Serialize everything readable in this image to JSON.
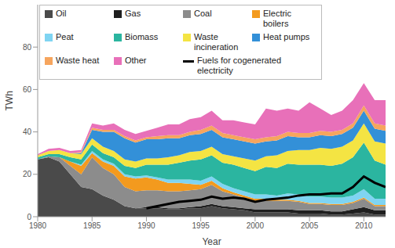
{
  "chart_data": {
    "type": "area",
    "stacked": true,
    "grid": false,
    "legend": "upper left",
    "x_label": "Year",
    "y_label": "TWh",
    "x": [
      1980,
      1981,
      1982,
      1983,
      1984,
      1985,
      1986,
      1987,
      1988,
      1989,
      1990,
      1991,
      1992,
      1993,
      1994,
      1995,
      1996,
      1997,
      1998,
      1999,
      2000,
      2001,
      2002,
      2003,
      2004,
      2005,
      2006,
      2007,
      2008,
      2009,
      2010,
      2011,
      2012
    ],
    "xlim": [
      1980,
      2012
    ],
    "xticks": [
      1980,
      1985,
      1990,
      1995,
      2000,
      2005,
      2010
    ],
    "ylim": [
      0,
      100
    ],
    "yticks": [
      0,
      20,
      40,
      60,
      80
    ],
    "series": [
      {
        "name": "Oil",
        "color": "#4a4a4a",
        "type": "area",
        "values": [
          27,
          28,
          26,
          20,
          14,
          13,
          10,
          8,
          5,
          4,
          4,
          4,
          3.5,
          3.5,
          4,
          4,
          5,
          4,
          3.5,
          3,
          2,
          2,
          2,
          2,
          1.5,
          1.5,
          1.5,
          1,
          1,
          1.5,
          2,
          1,
          1
        ]
      },
      {
        "name": "Gas",
        "color": "#1f1f1f",
        "type": "area",
        "values": [
          0,
          0,
          0,
          0,
          0,
          0,
          0,
          0,
          0,
          0,
          0.5,
          0.5,
          0.5,
          0.5,
          0.5,
          1,
          1,
          1,
          1,
          1,
          1.5,
          1.5,
          1.5,
          1.5,
          1.5,
          1.5,
          1.5,
          1.5,
          1.5,
          2,
          2.5,
          2,
          2
        ]
      },
      {
        "name": "Coal",
        "color": "#8c8c8c",
        "type": "area",
        "values": [
          0,
          0.5,
          2,
          4,
          6,
          15,
          13,
          12,
          9,
          8,
          8,
          8,
          8,
          8,
          8,
          8,
          9,
          7,
          6,
          5,
          4,
          4,
          4,
          4,
          4,
          3,
          3,
          3,
          3,
          3,
          4,
          2,
          2
        ]
      },
      {
        "name": "Electric boilers",
        "color": "#f39a1e",
        "type": "area",
        "values": [
          0,
          0,
          0,
          2,
          4,
          2,
          3,
          4,
          5,
          6,
          6,
          5,
          4,
          4,
          3,
          2,
          2,
          1.5,
          1,
          1,
          1,
          1,
          0.5,
          0.5,
          0.5,
          0.5,
          0.5,
          0.5,
          0.5,
          0.5,
          0.5,
          0.5,
          0.5
        ]
      },
      {
        "name": "Peat",
        "color": "#7fd4f2",
        "type": "area",
        "values": [
          0,
          0,
          0,
          0,
          0.5,
          1,
          1,
          1,
          1,
          1,
          1,
          1,
          1.5,
          1.5,
          2,
          2,
          2,
          2,
          2,
          2,
          2,
          2,
          2,
          3,
          3,
          3,
          3,
          3,
          3,
          3,
          4,
          3,
          3
        ]
      },
      {
        "name": "Biomass",
        "color": "#2bb5a0",
        "type": "area",
        "values": [
          1,
          1,
          1.5,
          2,
          2.5,
          3,
          3,
          3,
          4,
          4,
          5,
          6,
          7,
          8,
          9,
          10,
          10,
          10,
          11,
          11,
          11,
          13,
          13,
          14,
          14,
          15,
          15,
          15,
          16,
          18,
          22,
          18,
          16
        ]
      },
      {
        "name": "Waste incineration",
        "color": "#f4e443",
        "type": "area",
        "values": [
          1,
          1.5,
          2,
          2,
          2.5,
          3,
          3,
          3,
          3,
          3,
          3,
          3,
          3.5,
          3.5,
          4,
          4,
          4,
          4,
          4,
          4.5,
          5,
          5,
          6,
          6,
          7,
          7,
          8,
          8,
          8,
          8,
          9,
          9,
          10
        ]
      },
      {
        "name": "Heat pumps",
        "color": "#3390d8",
        "type": "area",
        "values": [
          0,
          0,
          0,
          0,
          0.5,
          4,
          7,
          9,
          10,
          9,
          9,
          9,
          9,
          8,
          8,
          8,
          8,
          8,
          8,
          8,
          8,
          7,
          7,
          7,
          6,
          6,
          6,
          6,
          6,
          6,
          6,
          6,
          6
        ]
      },
      {
        "name": "Waste heat",
        "color": "#f6a55e",
        "type": "area",
        "values": [
          0,
          0,
          0,
          0,
          0.5,
          1,
          1,
          1,
          1,
          1,
          1,
          1.5,
          1.5,
          1.5,
          1.5,
          2,
          2,
          2,
          2,
          2,
          2,
          2,
          2,
          2,
          2,
          2,
          2,
          2,
          2,
          2,
          2.5,
          2.5,
          2.5
        ]
      },
      {
        "name": "Other",
        "color": "#e870b9",
        "type": "area",
        "values": [
          0.5,
          1,
          1,
          1,
          1,
          2,
          2,
          3,
          3,
          3,
          3,
          4,
          5,
          5,
          6,
          6,
          7,
          6,
          7,
          7,
          7,
          13.5,
          12,
          11,
          10.5,
          14.5,
          10.5,
          8,
          9,
          11,
          10.5,
          11,
          12
        ]
      },
      {
        "name": "Fuels for cogenerated electricity",
        "color": "#000000",
        "type": "line",
        "values": [
          null,
          null,
          null,
          null,
          null,
          null,
          null,
          null,
          null,
          null,
          4,
          5,
          6,
          7,
          7.5,
          8,
          9.5,
          8.5,
          9,
          8.5,
          7,
          8,
          8.5,
          9,
          10,
          10.5,
          10.5,
          11,
          11,
          14,
          19,
          16,
          14
        ]
      }
    ]
  }
}
